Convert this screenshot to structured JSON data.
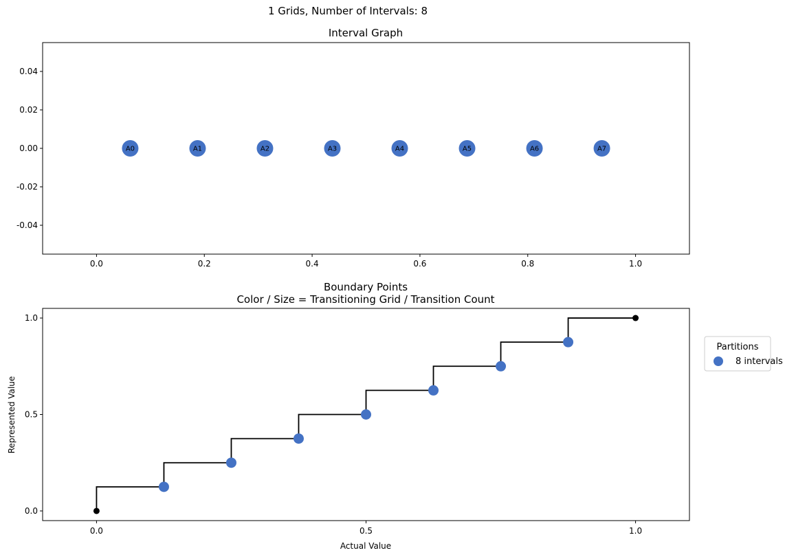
{
  "figure": {
    "suptitle": "1 Grids, Number of Intervals: 8"
  },
  "colors": {
    "node": "#4472c4",
    "step_line": "#000000",
    "endpoint": "#000000"
  },
  "chart_data": [
    {
      "type": "scatter",
      "title": "Interval Graph",
      "xlabel": "",
      "ylabel": "",
      "xlim": [
        -0.1,
        1.1
      ],
      "ylim": [
        -0.055,
        0.055
      ],
      "xticks": [
        "0.0",
        "0.2",
        "0.4",
        "0.6",
        "0.8",
        "1.0"
      ],
      "yticks": [
        "0.04",
        "0.02",
        "0.00",
        "-0.02",
        "-0.04"
      ],
      "grid": false,
      "nodes": [
        {
          "label": "A0",
          "x": 0.0625,
          "y": 0
        },
        {
          "label": "A1",
          "x": 0.1875,
          "y": 0
        },
        {
          "label": "A2",
          "x": 0.3125,
          "y": 0
        },
        {
          "label": "A3",
          "x": 0.4375,
          "y": 0
        },
        {
          "label": "A4",
          "x": 0.5625,
          "y": 0
        },
        {
          "label": "A5",
          "x": 0.6875,
          "y": 0
        },
        {
          "label": "A6",
          "x": 0.8125,
          "y": 0
        },
        {
          "label": "A7",
          "x": 0.9375,
          "y": 0
        }
      ]
    },
    {
      "type": "line",
      "title": "Boundary Points",
      "subtitle": "Color / Size = Transitioning Grid / Transition Count",
      "xlabel": "Actual Value",
      "ylabel": "Represented Value",
      "xlim": [
        -0.1,
        1.1
      ],
      "ylim": [
        -0.05,
        1.05
      ],
      "xticks": [
        "0.0",
        "0.5",
        "1.0"
      ],
      "yticks": [
        "1.0",
        "0.5",
        "0.0"
      ],
      "grid": false,
      "step_series": {
        "x": [
          0,
          0.125,
          0.25,
          0.375,
          0.5,
          0.625,
          0.75,
          0.875,
          1.0
        ],
        "y": [
          0.125,
          0.25,
          0.375,
          0.5,
          0.625,
          0.75,
          0.875,
          1.0,
          1.0
        ]
      },
      "boundary_points": {
        "name": "8 intervals",
        "x": [
          0.125,
          0.25,
          0.375,
          0.5,
          0.625,
          0.75,
          0.875
        ],
        "y": [
          0.125,
          0.25,
          0.375,
          0.5,
          0.625,
          0.75,
          0.875
        ]
      },
      "endpoints": {
        "x": [
          0.0,
          1.0
        ],
        "y": [
          0.0,
          1.0
        ]
      },
      "legend": {
        "title": "Partitions",
        "placement": "outside-right",
        "entries": [
          "8 intervals"
        ]
      }
    }
  ]
}
